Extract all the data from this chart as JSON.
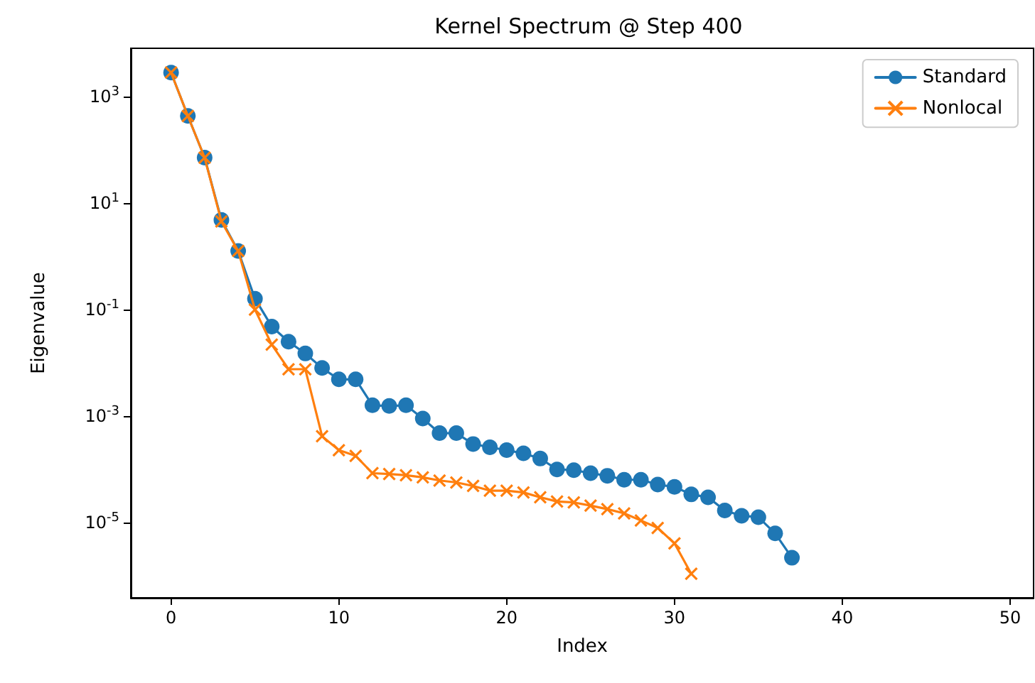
{
  "chart_data": {
    "type": "line",
    "title": "Kernel Spectrum @ Step 400",
    "xlabel": "Index",
    "ylabel": "Eigenvalue",
    "xlim": [
      -2.4,
      51.4
    ],
    "xticks": [
      0,
      10,
      20,
      30,
      40,
      50
    ],
    "ylim": [
      3.9e-07,
      8000
    ],
    "yticks": [
      {
        "value": 1000,
        "label": "10$^{3}$"
      },
      {
        "value": 10,
        "label": "10$^{1}$"
      },
      {
        "value": 0.1,
        "label": "10$^{-1}$"
      },
      {
        "value": 0.001,
        "label": "10$^{-3}$"
      },
      {
        "value": 1e-05,
        "label": "10$^{-5}$"
      }
    ],
    "log": "y",
    "grid": false,
    "legend": "top right",
    "series": [
      {
        "name": "Standard",
        "color": "#1f77b4",
        "marker": "circle",
        "x": [
          0,
          1,
          2,
          3,
          4,
          5,
          6,
          7,
          8,
          9,
          10,
          11,
          12,
          13,
          14,
          15,
          16,
          17,
          18,
          19,
          20,
          21,
          22,
          23,
          24,
          25,
          26,
          27,
          28,
          29,
          30,
          31,
          32,
          33,
          34,
          35,
          36,
          37
        ],
        "values": [
          2800,
          430,
          71,
          4.8,
          1.26,
          0.16,
          0.048,
          0.025,
          0.015,
          0.008,
          0.0049,
          0.0049,
          0.0016,
          0.00155,
          0.0016,
          0.0009,
          0.00048,
          0.00048,
          0.0003,
          0.00026,
          0.00023,
          0.0002,
          0.00016,
          0.0001,
          9.7e-05,
          8.5e-05,
          7.6e-05,
          6.4e-05,
          6.4e-05,
          5.2e-05,
          4.7e-05,
          3.4e-05,
          3e-05,
          1.7e-05,
          1.35e-05,
          1.27e-05,
          6.3e-06,
          2.2e-06
        ]
      },
      {
        "name": "Nonlocal",
        "color": "#ff7f0e",
        "marker": "cross",
        "x": [
          0,
          1,
          2,
          3,
          4,
          5,
          6,
          7,
          8,
          9,
          10,
          11,
          12,
          13,
          14,
          15,
          16,
          17,
          18,
          19,
          20,
          21,
          22,
          23,
          24,
          25,
          26,
          27,
          28,
          29,
          30,
          31
        ],
        "values": [
          2800,
          430,
          71,
          4.5,
          1.26,
          0.1,
          0.022,
          0.0076,
          0.0076,
          0.00042,
          0.00023,
          0.00018,
          8.5e-05,
          8.2e-05,
          7.8e-05,
          7.1e-05,
          6.2e-05,
          5.7e-05,
          4.9e-05,
          4e-05,
          4e-05,
          3.7e-05,
          3e-05,
          2.5e-05,
          2.4e-05,
          2.1e-05,
          1.8e-05,
          1.5e-05,
          1.1e-05,
          8e-06,
          4.1e-06,
          1.1e-06
        ]
      }
    ]
  }
}
